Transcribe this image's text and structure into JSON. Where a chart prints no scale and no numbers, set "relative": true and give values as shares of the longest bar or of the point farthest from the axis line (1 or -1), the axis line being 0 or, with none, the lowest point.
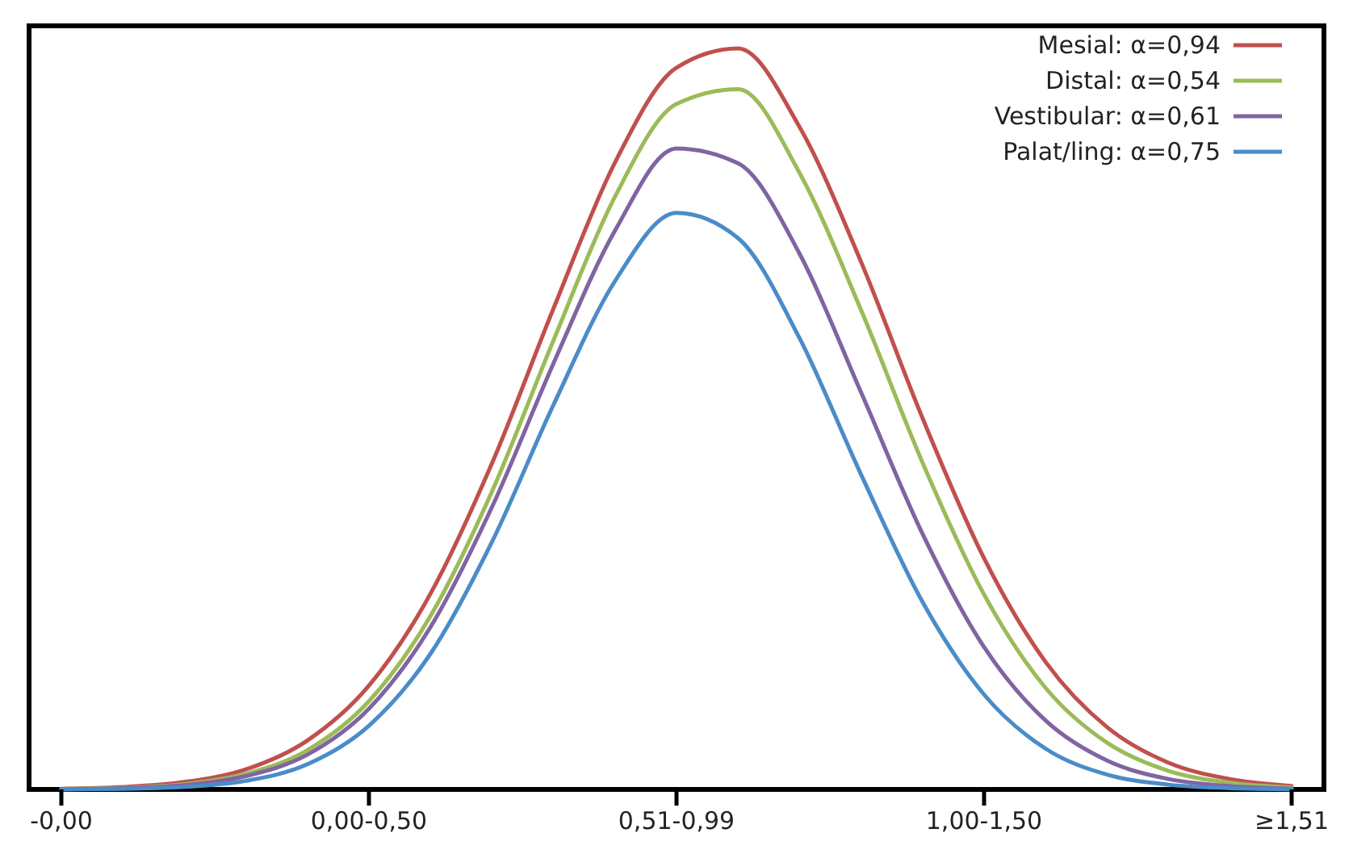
{
  "chart_data": {
    "type": "line",
    "relative": true,
    "categories": [
      "-0,00",
      null,
      null,
      null,
      null,
      "0,00-0,50",
      null,
      null,
      null,
      null,
      "0,51-0,99",
      null,
      null,
      null,
      null,
      "1,00-1,50",
      null,
      null,
      null,
      null,
      "≥1,51"
    ],
    "legend": "top right",
    "grid": false,
    "marker": "none",
    "line_style": "solid",
    "series": [
      {
        "name": "Mesial: α=0,94",
        "color": "#c0504d",
        "values": [
          0.0009,
          0.0032,
          0.01,
          0.027,
          0.066,
          0.14,
          0.264,
          0.44,
          0.649,
          0.846,
          0.974,
          1,
          0.894,
          0.712,
          0.501,
          0.312,
          0.172,
          0.084,
          0.036,
          0.014,
          0.0046
        ]
      },
      {
        "name": "Distal: α=0,54",
        "color": "#9bbb59",
        "values": [
          0.0006,
          0.0021,
          0.0071,
          0.021,
          0.053,
          0.119,
          0.234,
          0.402,
          0.606,
          0.8,
          0.925,
          0.945,
          0.832,
          0.647,
          0.441,
          0.263,
          0.137,
          0.063,
          0.025,
          0.009,
          0.0027
        ]
      },
      {
        "name": "Vestibular: α=0,61",
        "color": "#8064a2",
        "values": [
          0.0004,
          0.0016,
          0.0057,
          0.018,
          0.047,
          0.109,
          0.219,
          0.381,
          0.575,
          0.754,
          0.865,
          0.845,
          0.723,
          0.536,
          0.345,
          0.192,
          0.093,
          0.039,
          0.014,
          0.0045,
          0.0012
        ]
      },
      {
        "name": "Palat/ling: α=0,75",
        "color": "#4a8cc8",
        "values": [
          0.0002,
          0.0008,
          0.0034,
          0.0116,
          0.034,
          0.086,
          0.183,
          0.334,
          0.519,
          0.686,
          0.778,
          0.744,
          0.609,
          0.425,
          0.253,
          0.128,
          0.055,
          0.02,
          0.0064,
          0.0017,
          0.0004
        ]
      }
    ]
  }
}
